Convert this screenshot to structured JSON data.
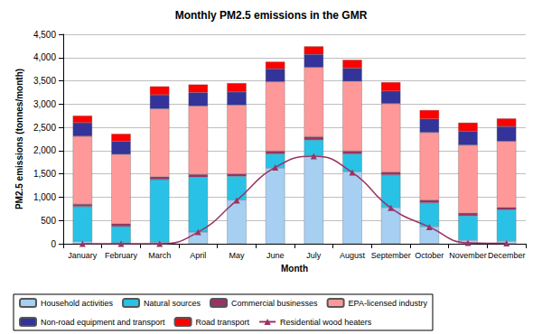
{
  "chart_data": {
    "type": "bar",
    "title": "Monthly PM2.5 emissions in the GMR",
    "x_label": "Month",
    "y_label": "PM2.5 emissions (tonnes/month)",
    "categories": [
      "January",
      "February",
      "March",
      "April",
      "May",
      "June",
      "July",
      "August",
      "September",
      "October",
      "November",
      "December"
    ],
    "stacked": true,
    "grid": true,
    "legend": "bottom",
    "ylim": [
      0,
      4500
    ],
    "yticks": [
      0,
      500,
      {
        "value": 1000,
        "label": "1,000"
      },
      {
        "value": 1500,
        "label": "1,500"
      },
      {
        "value": 2000,
        "label": "2,000"
      },
      {
        "value": 2500,
        "label": "2,500"
      },
      {
        "value": 3000,
        "label": "3,000"
      },
      {
        "value": 3500,
        "label": "3,500"
      },
      {
        "value": 4000,
        "label": "4,000"
      },
      {
        "value": 4500,
        "label": "4,500"
      }
    ],
    "series": [
      {
        "name": "Household activities",
        "color": "#a6cff2",
        "values": [
          50,
          20,
          30,
          250,
          940,
          1630,
          1900,
          1550,
          780,
          370,
          80,
          60
        ]
      },
      {
        "name": "Natural sources",
        "color": "#29c2e6",
        "values": [
          750,
          350,
          1350,
          1180,
          510,
          300,
          330,
          380,
          700,
          510,
          520,
          670
        ]
      },
      {
        "name": "Commercial businesses",
        "color": "#993366",
        "values": [
          50,
          60,
          60,
          60,
          50,
          60,
          70,
          60,
          60,
          60,
          60,
          50
        ]
      },
      {
        "name": "EPA-licensed industry",
        "color": "#ff9999",
        "values": [
          1460,
          1490,
          1460,
          1470,
          1480,
          1490,
          1490,
          1500,
          1470,
          1450,
          1460,
          1420
        ]
      },
      {
        "name": "Non-road equipment and transport",
        "color": "#333399",
        "values": [
          290,
          280,
          300,
          290,
          280,
          280,
          280,
          280,
          270,
          290,
          300,
          320
        ]
      },
      {
        "name": "Road transport",
        "color": "#ff0000",
        "values": [
          150,
          160,
          180,
          170,
          190,
          150,
          170,
          180,
          190,
          190,
          180,
          170
        ]
      },
      {
        "name": "Residential wood heaters",
        "color": "#993366",
        "type": "line",
        "marker": "triangle",
        "line_style": "solid",
        "values": [
          0,
          0,
          0,
          250,
          930,
          1640,
          1880,
          1530,
          770,
          360,
          20,
          10
        ]
      }
    ]
  }
}
